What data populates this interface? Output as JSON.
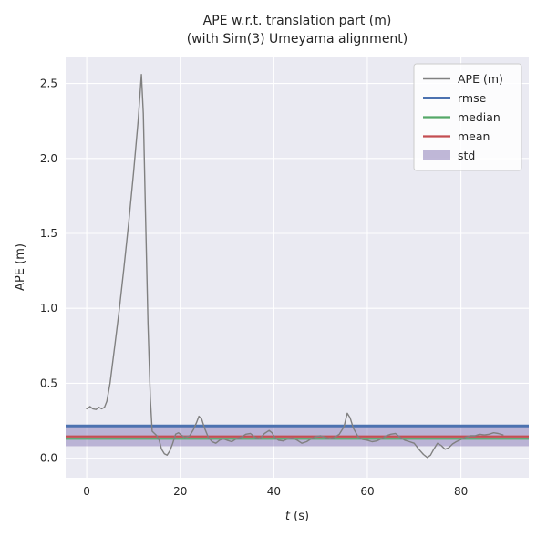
{
  "figure": {
    "title_line1": "APE w.r.t. translation part (m)",
    "title_line2": "(with Sim(3) Umeyama alignment)"
  },
  "chart_data": {
    "type": "line",
    "title": "APE w.r.t. translation part (m)\n(with Sim(3) Umeyama alignment)",
    "xlabel": "t (s)",
    "xlabel_italic": "t",
    "xlabel_rest": " (s)",
    "ylabel": "APE (m)",
    "xlim": [
      -4.5,
      94.5
    ],
    "ylim": [
      -0.13,
      2.68
    ],
    "x_ticks": [
      0,
      20,
      40,
      60,
      80
    ],
    "x_tick_labels": [
      "0",
      "20",
      "40",
      "60",
      "80"
    ],
    "y_ticks": [
      0.0,
      0.5,
      1.0,
      1.5,
      2.0,
      2.5
    ],
    "y_tick_labels": [
      "0.0",
      "0.5",
      "1.0",
      "1.5",
      "2.0",
      "2.5"
    ],
    "grid": true,
    "legend_position": "upper right",
    "series": [
      {
        "name": "APE (m)",
        "color": "#808080",
        "width": 1.4,
        "points": [
          [
            0,
            0.33
          ],
          [
            0.7,
            0.345
          ],
          [
            1.3,
            0.33
          ],
          [
            2,
            0.325
          ],
          [
            2.6,
            0.34
          ],
          [
            3.2,
            0.33
          ],
          [
            3.8,
            0.34
          ],
          [
            4.3,
            0.38
          ],
          [
            5,
            0.5
          ],
          [
            6,
            0.75
          ],
          [
            7,
            1.0
          ],
          [
            8,
            1.28
          ],
          [
            9,
            1.58
          ],
          [
            10,
            1.9
          ],
          [
            11,
            2.25
          ],
          [
            11.7,
            2.56
          ],
          [
            12.1,
            2.3
          ],
          [
            12.6,
            1.6
          ],
          [
            13.1,
            0.9
          ],
          [
            13.6,
            0.4
          ],
          [
            14,
            0.18
          ],
          [
            14.5,
            0.165
          ],
          [
            15,
            0.15
          ],
          [
            15.5,
            0.12
          ],
          [
            16,
            0.06
          ],
          [
            16.6,
            0.03
          ],
          [
            17.2,
            0.02
          ],
          [
            17.8,
            0.05
          ],
          [
            18.4,
            0.1
          ],
          [
            19,
            0.16
          ],
          [
            19.6,
            0.17
          ],
          [
            20.2,
            0.155
          ],
          [
            21,
            0.14
          ],
          [
            22,
            0.15
          ],
          [
            22.8,
            0.19
          ],
          [
            23.5,
            0.24
          ],
          [
            24,
            0.28
          ],
          [
            24.6,
            0.26
          ],
          [
            25.2,
            0.2
          ],
          [
            26,
            0.14
          ],
          [
            26.8,
            0.11
          ],
          [
            27.6,
            0.1
          ],
          [
            28.4,
            0.12
          ],
          [
            29.2,
            0.13
          ],
          [
            30,
            0.12
          ],
          [
            31,
            0.11
          ],
          [
            32,
            0.13
          ],
          [
            33,
            0.14
          ],
          [
            34,
            0.16
          ],
          [
            35,
            0.165
          ],
          [
            36,
            0.14
          ],
          [
            37,
            0.13
          ],
          [
            38,
            0.165
          ],
          [
            39,
            0.185
          ],
          [
            39.6,
            0.17
          ],
          [
            40.2,
            0.14
          ],
          [
            41,
            0.12
          ],
          [
            42,
            0.115
          ],
          [
            43,
            0.13
          ],
          [
            44,
            0.135
          ],
          [
            45,
            0.12
          ],
          [
            46,
            0.1
          ],
          [
            47,
            0.11
          ],
          [
            48,
            0.13
          ],
          [
            49,
            0.145
          ],
          [
            50,
            0.15
          ],
          [
            51,
            0.14
          ],
          [
            52,
            0.13
          ],
          [
            53,
            0.14
          ],
          [
            54,
            0.16
          ],
          [
            55,
            0.21
          ],
          [
            55.7,
            0.3
          ],
          [
            56.3,
            0.27
          ],
          [
            57,
            0.2
          ],
          [
            58,
            0.145
          ],
          [
            59,
            0.125
          ],
          [
            60,
            0.12
          ],
          [
            61,
            0.11
          ],
          [
            62,
            0.115
          ],
          [
            63,
            0.13
          ],
          [
            64,
            0.15
          ],
          [
            65,
            0.16
          ],
          [
            66,
            0.165
          ],
          [
            67,
            0.14
          ],
          [
            68,
            0.12
          ],
          [
            69,
            0.11
          ],
          [
            70,
            0.1
          ],
          [
            71,
            0.06
          ],
          [
            72,
            0.025
          ],
          [
            72.8,
            0.005
          ],
          [
            73.5,
            0.02
          ],
          [
            74.2,
            0.06
          ],
          [
            75,
            0.1
          ],
          [
            75.8,
            0.085
          ],
          [
            76.6,
            0.06
          ],
          [
            77.4,
            0.07
          ],
          [
            78.2,
            0.095
          ],
          [
            79,
            0.11
          ],
          [
            80,
            0.125
          ],
          [
            81,
            0.14
          ],
          [
            82,
            0.15
          ],
          [
            83,
            0.15
          ],
          [
            84,
            0.16
          ],
          [
            85,
            0.155
          ],
          [
            86,
            0.16
          ],
          [
            87,
            0.17
          ],
          [
            88,
            0.165
          ],
          [
            89,
            0.155
          ]
        ]
      }
    ],
    "stats": {
      "rmse": 0.215,
      "mean": 0.145,
      "median": 0.13,
      "std": 0.065
    },
    "stat_lines": [
      {
        "name": "rmse",
        "value": 0.215,
        "color": "#4c72b0",
        "width": 3
      },
      {
        "name": "median",
        "value": 0.13,
        "color": "#55a868",
        "width": 2.2
      },
      {
        "name": "mean",
        "value": 0.145,
        "color": "#c44e52",
        "width": 2.2
      }
    ],
    "std_band": {
      "name": "std",
      "min": 0.08,
      "max": 0.21,
      "color": "#8172b2",
      "opacity": 0.45
    },
    "legend_items": [
      {
        "label": "APE (m)",
        "type": "line",
        "color": "#808080",
        "width": 1.4
      },
      {
        "label": "rmse",
        "type": "line",
        "color": "#4c72b0",
        "width": 3
      },
      {
        "label": "median",
        "type": "line",
        "color": "#55a868",
        "width": 2.2
      },
      {
        "label": "mean",
        "type": "line",
        "color": "#c44e52",
        "width": 2.2
      },
      {
        "label": "std",
        "type": "patch",
        "color": "#8172b2",
        "opacity": 0.5
      }
    ]
  },
  "style": {
    "axes_bg": "#eaeaf2",
    "grid_color": "#ffffff",
    "text_color": "#262626",
    "legend_bg": "rgba(255,255,255,0.85)",
    "legend_border": "#cccccc"
  }
}
